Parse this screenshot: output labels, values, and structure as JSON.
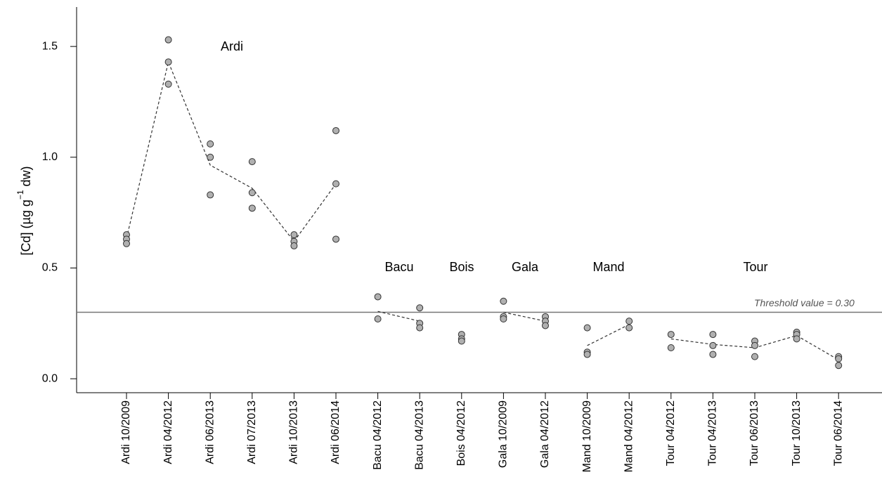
{
  "chart_data": {
    "type": "dot",
    "y_label": "[Cd] (µg  g",
    "y_label_sup": "−1",
    "y_label_end": " dw)",
    "categories": [
      "Ardi 10/2009",
      "Ardi 04/2012",
      "Ardi 06/2013",
      "Ardi 07/2013",
      "Ardi 10/2013",
      "Ardi 06/2014",
      "Bacu 04/2012",
      "Bacu 04/2013",
      "Bois 04/2012",
      "Gala 10/2009",
      "Gala 04/2012",
      "Mand 10/2009",
      "Mand 04/2012",
      "Tour 04/2012",
      "Tour 04/2013",
      "Tour 06/2013",
      "Tour 10/2013",
      "Tour 06/2014"
    ],
    "replicates": [
      [
        0.65,
        0.63,
        0.61
      ],
      [
        1.53,
        1.43,
        1.33
      ],
      [
        1.06,
        1.0,
        0.83
      ],
      [
        0.98,
        0.84,
        0.77
      ],
      [
        0.65,
        0.62,
        0.6
      ],
      [
        1.12,
        0.88,
        0.63
      ],
      [
        0.37,
        0.27
      ],
      [
        0.32,
        0.25,
        0.23
      ],
      [
        0.2,
        0.18,
        0.17
      ],
      [
        0.35,
        0.28,
        0.27
      ],
      [
        0.28,
        0.26,
        0.24
      ],
      [
        0.23,
        0.12,
        0.11
      ],
      [
        0.26,
        0.23
      ],
      [
        0.2,
        0.14
      ],
      [
        0.2,
        0.15,
        0.11
      ],
      [
        0.17,
        0.15,
        0.1
      ],
      [
        0.21,
        0.2,
        0.18
      ],
      [
        0.1,
        0.09,
        0.06
      ]
    ],
    "point_color": "#b0b0b0",
    "groups": [
      {
        "name": "Ardi",
        "values": [
          0.634,
          1.43,
          0.964,
          0.86,
          0.62,
          0.88,
          null,
          null,
          null,
          null,
          null,
          null,
          null,
          null,
          null,
          null,
          null,
          null
        ]
      },
      {
        "name": "Bacu",
        "values": [
          null,
          null,
          null,
          null,
          null,
          null,
          0.304,
          0.26,
          null,
          null,
          null,
          null,
          null,
          null,
          null,
          null,
          null,
          null
        ]
      },
      {
        "name": "Bois"
      },
      {
        "name": "Gala",
        "values": [
          null,
          null,
          null,
          null,
          null,
          null,
          null,
          null,
          null,
          0.3,
          0.26,
          null,
          null,
          null,
          null,
          null,
          null,
          null
        ]
      },
      {
        "name": "Mand",
        "values": [
          null,
          null,
          null,
          null,
          null,
          null,
          null,
          null,
          null,
          null,
          null,
          0.15,
          0.245,
          null,
          null,
          null,
          null,
          null
        ]
      },
      {
        "name": "Tour",
        "values": [
          null,
          null,
          null,
          null,
          null,
          null,
          null,
          null,
          null,
          null,
          null,
          null,
          null,
          0.18,
          0.155,
          0.14,
          0.195,
          0.085
        ]
      }
    ],
    "threshold": {
      "value": 0.3,
      "label": "Threshold value = 0.30"
    },
    "ylim": [
      -0.063,
      1.678
    ],
    "yticks": [
      {
        "value": 0,
        "label": "0.0"
      },
      0.5,
      {
        "value": 1,
        "label": "1.0"
      },
      1.5
    ]
  }
}
